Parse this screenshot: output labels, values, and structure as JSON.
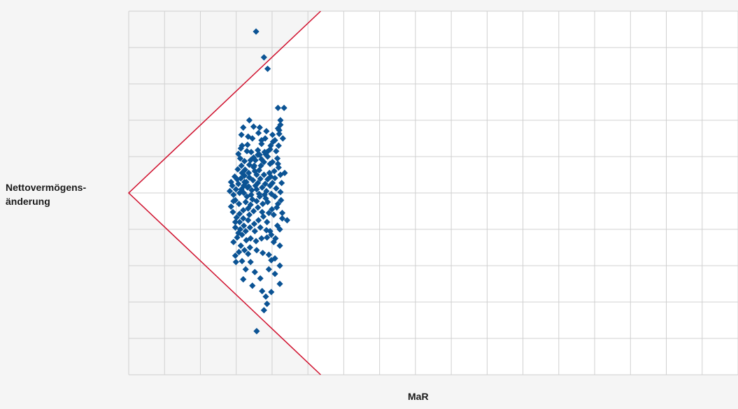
{
  "chart_data": {
    "type": "scatter",
    "title": "",
    "xlabel": "MaR",
    "ylabel": "Nettovermögens-\nänderung",
    "grid": true,
    "colors": {
      "plot_bg": "#ffffff",
      "page_bg": "#f5f5f5",
      "grid": "#d0d0d0",
      "points": "#0b5394",
      "boundary": "#d0102d"
    },
    "xlim": [
      0,
      1
    ],
    "ylim": [
      -1,
      1
    ],
    "boundary": [
      [
        0.315,
        1
      ],
      [
        0,
        0
      ],
      [
        0.315,
        -1
      ]
    ],
    "series": [
      {
        "marker": "diamond",
        "points": [
          [
            0.209,
            0.888
          ],
          [
            0.222,
            0.746
          ],
          [
            0.228,
            0.683
          ],
          [
            0.245,
            0.468
          ],
          [
            0.255,
            0.468
          ],
          [
            0.249,
            0.4
          ],
          [
            0.249,
            0.375
          ],
          [
            0.245,
            0.355
          ],
          [
            0.247,
            0.325
          ],
          [
            0.253,
            0.3
          ],
          [
            0.237,
            0.282
          ],
          [
            0.246,
            0.26
          ],
          [
            0.227,
            0.225
          ],
          [
            0.225,
            0.212
          ],
          [
            0.212,
            0.21
          ],
          [
            0.218,
            0.185
          ],
          [
            0.222,
            0.17
          ],
          [
            0.232,
            0.16
          ],
          [
            0.205,
            0.142
          ],
          [
            0.198,
            0.085
          ],
          [
            0.19,
            0.06
          ],
          [
            0.207,
            0.12
          ],
          [
            0.228,
            0.2
          ],
          [
            0.236,
            0.17
          ],
          [
            0.245,
            0.16
          ],
          [
            0.249,
            0.1
          ],
          [
            0.24,
            0.082
          ],
          [
            0.232,
            0.04
          ],
          [
            0.21,
            0.02
          ],
          [
            0.195,
            0.03
          ],
          [
            0.189,
            0.04
          ],
          [
            0.182,
            0.0
          ],
          [
            0.185,
            0.02
          ],
          [
            0.201,
            -0.01
          ],
          [
            0.215,
            -0.02
          ],
          [
            0.225,
            -0.03
          ],
          [
            0.24,
            -0.02
          ],
          [
            0.249,
            0.005
          ],
          [
            0.25,
            -0.04
          ],
          [
            0.245,
            -0.06
          ],
          [
            0.235,
            -0.09
          ],
          [
            0.238,
            -0.12
          ],
          [
            0.252,
            -0.14
          ],
          [
            0.26,
            -0.15
          ],
          [
            0.244,
            -0.18
          ],
          [
            0.232,
            -0.21
          ],
          [
            0.227,
            -0.245
          ],
          [
            0.218,
            -0.25
          ],
          [
            0.209,
            -0.265
          ],
          [
            0.2,
            -0.25
          ],
          [
            0.193,
            -0.26
          ],
          [
            0.18,
            -0.22
          ],
          [
            0.175,
            -0.19
          ],
          [
            0.182,
            -0.16
          ],
          [
            0.188,
            -0.14
          ],
          [
            0.198,
            -0.12
          ],
          [
            0.205,
            -0.1
          ],
          [
            0.212,
            -0.08
          ],
          [
            0.22,
            -0.06
          ],
          [
            0.228,
            -0.05
          ],
          [
            0.2,
            -0.065
          ],
          [
            0.192,
            -0.05
          ],
          [
            0.181,
            -0.06
          ],
          [
            0.175,
            -0.04
          ],
          [
            0.172,
            -0.01
          ],
          [
            0.176,
            0.02
          ],
          [
            0.18,
            0.05
          ],
          [
            0.184,
            0.08
          ],
          [
            0.19,
            0.095
          ],
          [
            0.197,
            0.11
          ],
          [
            0.204,
            0.07
          ],
          [
            0.212,
            0.055
          ],
          [
            0.219,
            0.03
          ],
          [
            0.226,
            0.01
          ],
          [
            0.234,
            -0.005
          ],
          [
            0.242,
            0.025
          ],
          [
            0.236,
            0.055
          ],
          [
            0.228,
            0.075
          ],
          [
            0.222,
            0.1
          ],
          [
            0.214,
            0.125
          ],
          [
            0.206,
            0.15
          ],
          [
            0.2,
            0.18
          ],
          [
            0.194,
            0.23
          ],
          [
            0.186,
            0.26
          ],
          [
            0.18,
            0.215
          ],
          [
            0.19,
            0.175
          ],
          [
            0.197,
            0.035
          ],
          [
            0.208,
            0.04
          ],
          [
            0.214,
            -0.005
          ],
          [
            0.203,
            -0.035
          ],
          [
            0.196,
            -0.085
          ],
          [
            0.188,
            -0.095
          ],
          [
            0.182,
            -0.115
          ],
          [
            0.177,
            -0.135
          ],
          [
            0.171,
            -0.105
          ],
          [
            0.168,
            -0.075
          ],
          [
            0.172,
            -0.045
          ],
          [
            0.166,
            0.01
          ],
          [
            0.168,
            0.06
          ],
          [
            0.174,
            0.09
          ],
          [
            0.179,
            0.13
          ],
          [
            0.185,
            0.15
          ],
          [
            0.191,
            0.128
          ],
          [
            0.198,
            0.155
          ],
          [
            0.205,
            0.195
          ],
          [
            0.212,
            0.235
          ],
          [
            0.218,
            0.27
          ],
          [
            0.223,
            0.225
          ],
          [
            0.217,
            0.15
          ],
          [
            0.21,
            0.1
          ],
          [
            0.216,
            0.078
          ],
          [
            0.224,
            0.05
          ],
          [
            0.231,
            0.11
          ],
          [
            0.239,
            0.12
          ],
          [
            0.246,
            0.14
          ],
          [
            0.251,
            0.055
          ],
          [
            0.243,
            -0.08
          ],
          [
            0.23,
            -0.11
          ],
          [
            0.221,
            -0.13
          ],
          [
            0.213,
            -0.15
          ],
          [
            0.206,
            -0.17
          ],
          [
            0.199,
            -0.19
          ],
          [
            0.192,
            -0.21
          ],
          [
            0.186,
            -0.23
          ],
          [
            0.178,
            -0.245
          ],
          [
            0.172,
            -0.27
          ],
          [
            0.184,
            -0.29
          ],
          [
            0.199,
            -0.3
          ],
          [
            0.21,
            -0.315
          ],
          [
            0.22,
            -0.33
          ],
          [
            0.23,
            -0.34
          ],
          [
            0.24,
            -0.36
          ],
          [
            0.248,
            -0.29
          ],
          [
            0.238,
            -0.27
          ],
          [
            0.226,
            -0.205
          ],
          [
            0.216,
            -0.19
          ],
          [
            0.207,
            -0.21
          ],
          [
            0.196,
            -0.15
          ],
          [
            0.189,
            -0.18
          ],
          [
            0.183,
            -0.2
          ],
          [
            0.175,
            -0.16
          ],
          [
            0.17,
            0.04
          ],
          [
            0.178,
            0.075
          ],
          [
            0.186,
            0.11
          ],
          [
            0.193,
            0.06
          ],
          [
            0.202,
            0.015
          ],
          [
            0.21,
            -0.045
          ],
          [
            0.219,
            -0.105
          ],
          [
            0.227,
            -0.16
          ],
          [
            0.234,
            -0.23
          ],
          [
            0.241,
            -0.25
          ],
          [
            0.248,
            -0.2
          ],
          [
            0.252,
            -0.11
          ],
          [
            0.256,
            0.11
          ],
          [
            0.244,
            0.19
          ],
          [
            0.232,
            0.24
          ],
          [
            0.224,
            0.3
          ],
          [
            0.213,
            0.33
          ],
          [
            0.203,
            0.3
          ],
          [
            0.196,
            0.31
          ],
          [
            0.188,
            0.36
          ],
          [
            0.205,
            0.365
          ],
          [
            0.215,
            0.36
          ],
          [
            0.226,
            0.34
          ],
          [
            0.236,
            0.32
          ],
          [
            0.247,
            0.345
          ],
          [
            0.242,
            0.23
          ],
          [
            0.195,
            0.265
          ],
          [
            0.183,
            0.19
          ],
          [
            0.189,
            0.0
          ],
          [
            0.194,
            -0.02
          ],
          [
            0.223,
            -0.01
          ],
          [
            0.233,
            0.09
          ],
          [
            0.218,
            0.29
          ],
          [
            0.201,
            0.225
          ],
          [
            0.196,
            -0.335
          ],
          [
            0.19,
            -0.315
          ],
          [
            0.181,
            -0.325
          ],
          [
            0.175,
            -0.345
          ],
          [
            0.186,
            -0.375
          ],
          [
            0.23,
            -0.42
          ],
          [
            0.248,
            -0.4
          ],
          [
            0.234,
            -0.37
          ],
          [
            0.192,
            -0.42
          ],
          [
            0.2,
            -0.38
          ],
          [
            0.176,
            -0.38
          ],
          [
            0.188,
            -0.475
          ],
          [
            0.207,
            -0.435
          ],
          [
            0.216,
            -0.47
          ],
          [
            0.225,
            -0.57
          ],
          [
            0.248,
            -0.5
          ],
          [
            0.234,
            -0.545
          ],
          [
            0.219,
            -0.54
          ],
          [
            0.227,
            -0.61
          ],
          [
            0.222,
            -0.645
          ],
          [
            0.21,
            -0.76
          ],
          [
            0.203,
            -0.51
          ],
          [
            0.24,
            -0.445
          ],
          [
            0.198,
            0.4
          ],
          [
            0.185,
            0.32
          ],
          [
            0.215,
            0.21
          ],
          [
            0.208,
            0.18
          ],
          [
            0.184,
            0.245
          ],
          [
            0.233,
            0.26
          ],
          [
            0.24,
            0.29
          ]
        ]
      }
    ]
  }
}
